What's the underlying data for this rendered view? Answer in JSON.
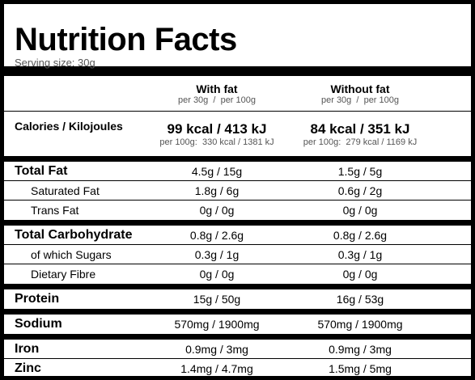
{
  "header": {
    "title": "Nutrition Facts",
    "serving_size": "Serving size: 30g"
  },
  "columns": [
    {
      "name": "With fat",
      "sub": "per 30g  /  per 100g"
    },
    {
      "name": "Without fat",
      "sub": "per 30g  /  per 100g"
    }
  ],
  "calories": {
    "label": "Calories / Kilojoules",
    "values": [
      {
        "main": "99 kcal / 413 kJ",
        "sub": "per 100g:  330 kcal / 1381 kJ"
      },
      {
        "main": "84 kcal / 351 kJ",
        "sub": "per 100g:  279 kcal / 1169 kJ"
      }
    ]
  },
  "groups": [
    {
      "rows": [
        {
          "label": "Total Fat",
          "values": [
            "4.5g / 15g",
            "1.5g / 5g"
          ],
          "indent": false
        },
        {
          "label": "Saturated Fat",
          "values": [
            "1.8g / 6g",
            "0.6g / 2g"
          ],
          "indent": true
        },
        {
          "label": "Trans Fat",
          "values": [
            "0g / 0g",
            "0g / 0g"
          ],
          "indent": true
        }
      ]
    },
    {
      "rows": [
        {
          "label": "Total Carbohydrate",
          "values": [
            "0.8g / 2.6g",
            "0.8g / 2.6g"
          ],
          "indent": false
        },
        {
          "label": "of which Sugars",
          "values": [
            "0.3g / 1g",
            "0.3g / 1g"
          ],
          "indent": true
        },
        {
          "label": "Dietary Fibre",
          "values": [
            "0g / 0g",
            "0g / 0g"
          ],
          "indent": true
        }
      ]
    },
    {
      "rows": [
        {
          "label": "Protein",
          "values": [
            "15g / 50g",
            "16g / 53g"
          ],
          "indent": false
        }
      ]
    },
    {
      "rows": [
        {
          "label": "Sodium",
          "values": [
            "570mg / 1900mg",
            "570mg / 1900mg"
          ],
          "indent": false
        }
      ]
    },
    {
      "rows": [
        {
          "label": "Iron",
          "values": [
            "0.9mg / 3mg",
            "0.9mg / 3mg"
          ],
          "indent": false
        },
        {
          "label": "Zinc",
          "values": [
            "1.4mg / 4.7mg",
            "1.5mg / 5mg"
          ],
          "indent": false
        }
      ]
    }
  ]
}
